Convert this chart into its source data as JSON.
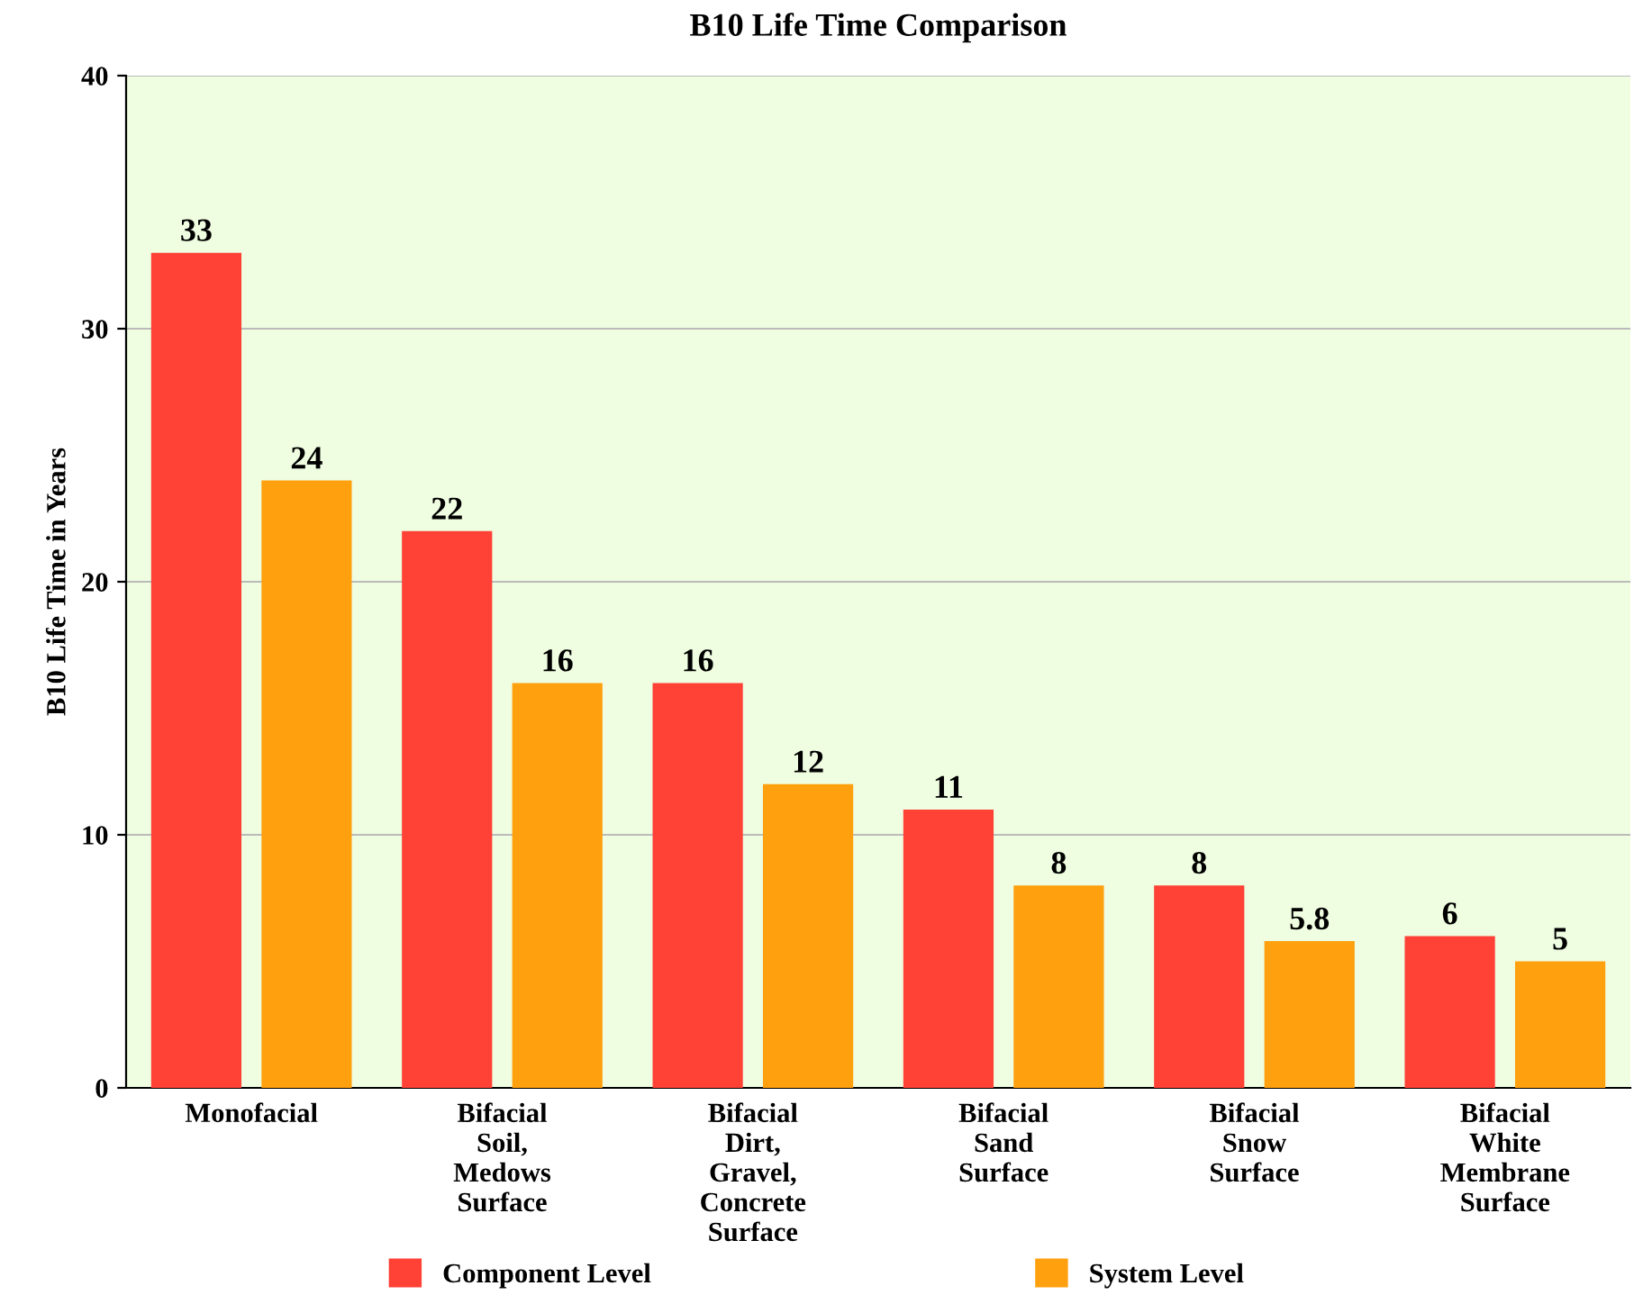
{
  "chart_data": {
    "type": "bar",
    "title": "B10 Life Time Comparison",
    "ylabel": "B10 Life Time in Years",
    "categories": [
      "Monofacial",
      "Bifacial\nSoil,\nMedows\nSurface",
      "Bifacial\nDirt,\nGravel,\nConcrete\nSurface",
      "Bifacial\nSand\nSurface",
      "Bifacial\nSnow\nSurface",
      "Bifacial\nWhite\nMembrane\nSurface"
    ],
    "series": [
      {
        "name": "Component Level",
        "color": "#ff4136",
        "values": [
          33,
          22,
          16,
          11,
          8,
          6
        ]
      },
      {
        "name": "System Level",
        "color": "#ffa00f",
        "values": [
          24,
          16,
          12,
          8,
          5.8,
          5
        ]
      }
    ],
    "ylim": [
      0,
      40
    ],
    "yticks": [
      0,
      10,
      20,
      30,
      40
    ],
    "grid": "y",
    "legend": "bottom",
    "data_labels": true
  }
}
